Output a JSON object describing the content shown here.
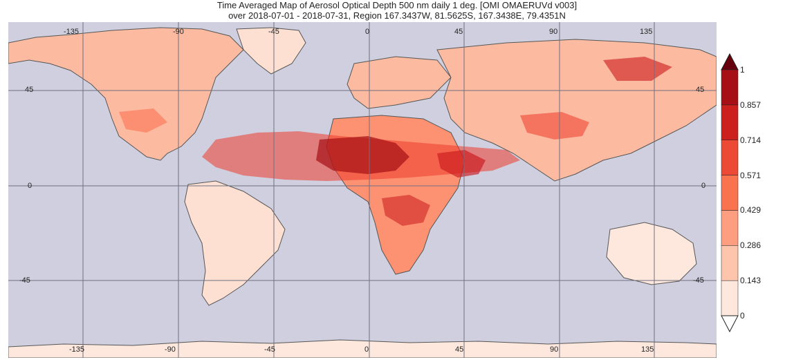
{
  "title": {
    "line1": "Time Averaged Map of Aerosol Optical Depth 500 nm daily 1 deg. [OMI OMAERUVd v003]",
    "line2": "over 2018-07-01 - 2018-07-31, Region 167.3437W, 81.5625S, 167.3438E, 79.4351N"
  },
  "map": {
    "ocean_color": "#cfcfdf",
    "gridline_color": "#6f6f7f",
    "coastline_color": "#555555",
    "longitude_labels_top": [
      "-135",
      "-90",
      "-45",
      "0",
      "45",
      "90",
      "135"
    ],
    "longitude_labels_bottom": [
      "-135",
      "-90",
      "-45",
      "0",
      "45",
      "90",
      "135"
    ],
    "latitude_labels_left": [
      "45",
      "0",
      "-45"
    ],
    "latitude_labels_right": [
      "45",
      "0",
      "-45"
    ]
  },
  "colorbar": {
    "labels": [
      "1",
      "0.857",
      "0.714",
      "0.571",
      "0.429",
      "0.286",
      "0.143",
      "0"
    ],
    "colors": [
      "#fee7dc",
      "#fdc5ab",
      "#fc9e7f",
      "#f9734f",
      "#ec4a34",
      "#cc201f",
      "#a50f15"
    ],
    "over_color": "#67000d",
    "under_color": "#ffffff"
  }
}
